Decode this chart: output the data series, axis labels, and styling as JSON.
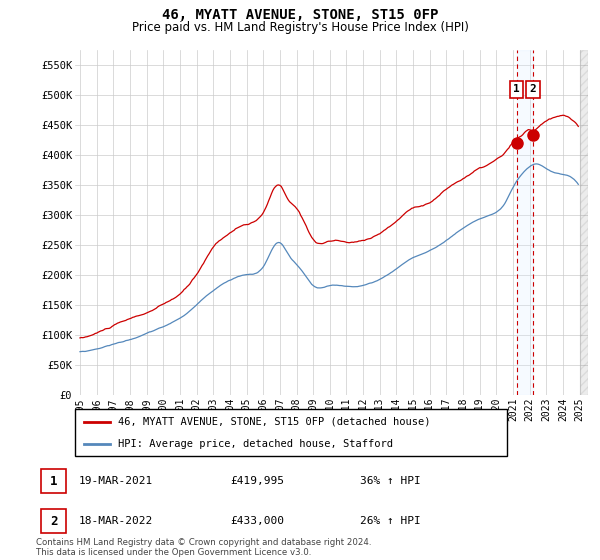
{
  "title": "46, MYATT AVENUE, STONE, ST15 0FP",
  "subtitle": "Price paid vs. HM Land Registry's House Price Index (HPI)",
  "legend_line1": "46, MYATT AVENUE, STONE, ST15 0FP (detached house)",
  "legend_line2": "HPI: Average price, detached house, Stafford",
  "annotation1_label": "1",
  "annotation1_date": "19-MAR-2021",
  "annotation1_price": "£419,995",
  "annotation1_hpi": "36% ↑ HPI",
  "annotation2_label": "2",
  "annotation2_date": "18-MAR-2022",
  "annotation2_price": "£433,000",
  "annotation2_hpi": "26% ↑ HPI",
  "footer": "Contains HM Land Registry data © Crown copyright and database right 2024.\nThis data is licensed under the Open Government Licence v3.0.",
  "red_color": "#cc0000",
  "blue_color": "#5588bb",
  "vline_color": "#cc0000",
  "shade_color": "#ddeeff",
  "grid_color": "#cccccc",
  "background_color": "#ffffff",
  "ylim": [
    0,
    575000
  ],
  "yticks": [
    0,
    50000,
    100000,
    150000,
    200000,
    250000,
    300000,
    350000,
    400000,
    450000,
    500000,
    550000
  ],
  "ytick_labels": [
    "£0",
    "£50K",
    "£100K",
    "£150K",
    "£200K",
    "£250K",
    "£300K",
    "£350K",
    "£400K",
    "£450K",
    "£500K",
    "£550K"
  ],
  "x_start_year": 1995,
  "x_end_year": 2025,
  "xtick_years": [
    1995,
    1996,
    1997,
    1998,
    1999,
    2000,
    2001,
    2002,
    2003,
    2004,
    2005,
    2006,
    2007,
    2008,
    2009,
    2010,
    2011,
    2012,
    2013,
    2014,
    2015,
    2016,
    2017,
    2018,
    2019,
    2020,
    2021,
    2022,
    2023,
    2024,
    2025
  ],
  "sale1_x": 2021.21,
  "sale1_y": 419995,
  "sale2_x": 2022.21,
  "sale2_y": 433000,
  "hatch_start": 2025.0
}
